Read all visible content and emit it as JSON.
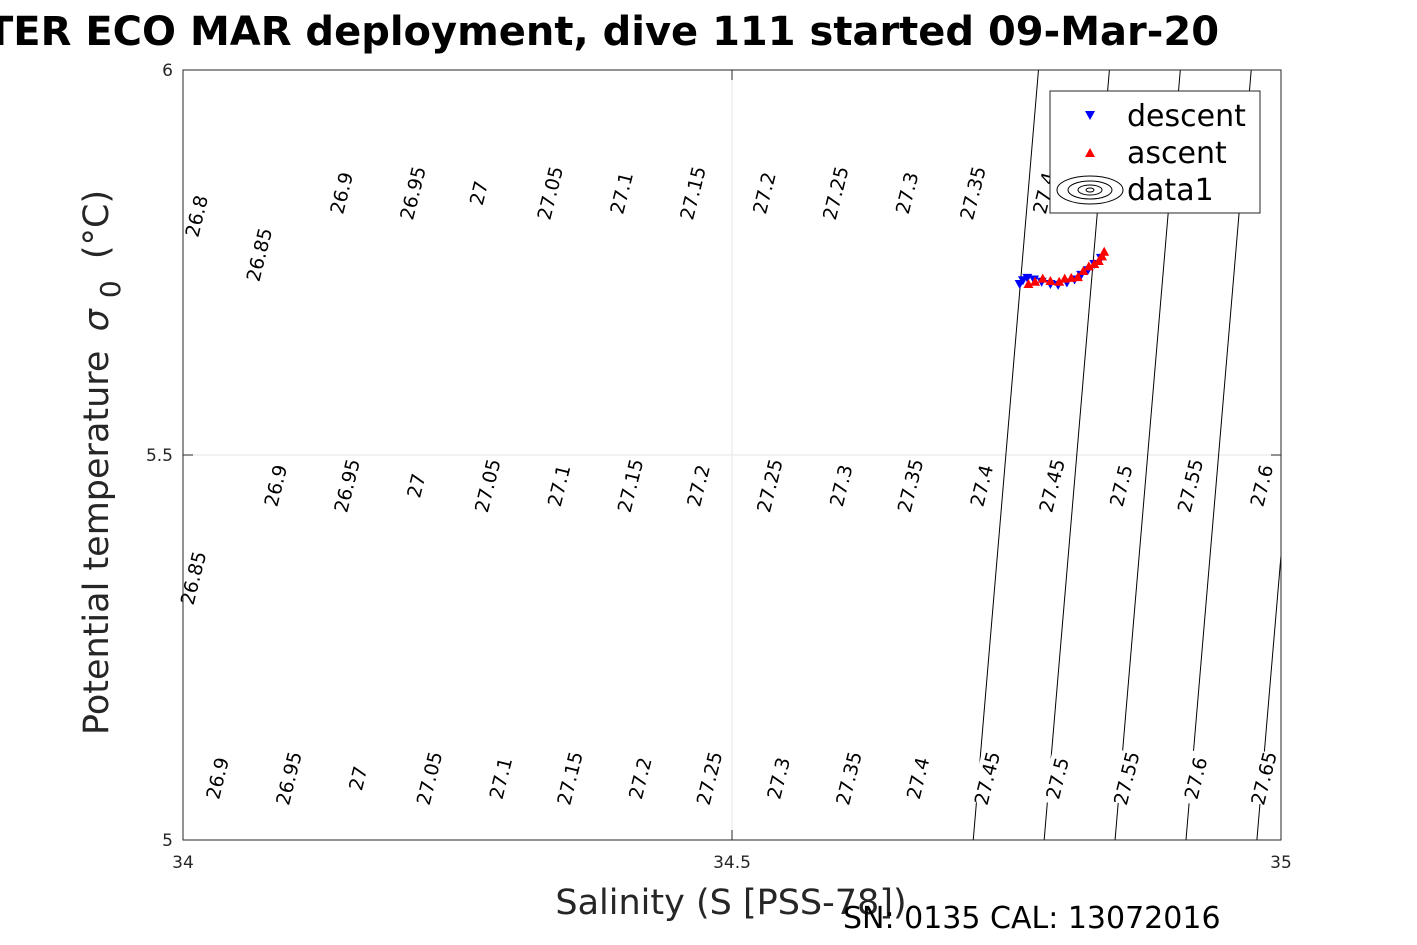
{
  "chart_data": {
    "type": "scatter",
    "title": "TER ECO MAR deployment, dive 111 started 09-Mar-20",
    "xlabel": "Salinity (S [PSS-78])",
    "ylabel": "Potential temperature",
    "ylabel_symbol": "σ",
    "ylabel_subscript": "0",
    "ylabel_unit": "(°C)",
    "xlim": [
      34,
      35
    ],
    "ylim": [
      5,
      6
    ],
    "xticks": [
      "34",
      "34.5",
      "35"
    ],
    "yticks": [
      "5",
      "5.5",
      "6"
    ],
    "grid": true,
    "legend_position": "top-right",
    "legend": [
      {
        "name": "descent",
        "marker": "triangle-down",
        "color": "#0000ff"
      },
      {
        "name": "ascent",
        "marker": "triangle-up",
        "color": "#ff0000"
      },
      {
        "name": "data1",
        "marker": "contour",
        "color": "#000000"
      }
    ],
    "contour_levels": [
      26.8,
      26.85,
      26.9,
      26.95,
      27,
      27.05,
      27.1,
      27.15,
      27.2,
      27.25,
      27.3,
      27.35,
      27.4,
      27.45,
      27.5,
      27.55,
      27.6,
      27.65
    ],
    "contour_labels": [
      {
        "text": "26.8",
        "s": 34.013,
        "t": 5.81
      },
      {
        "text": "26.85",
        "s": 34.07,
        "t": 5.76
      },
      {
        "text": "26.9",
        "s": 34.145,
        "t": 5.84
      },
      {
        "text": "26.95",
        "s": 34.21,
        "t": 5.84
      },
      {
        "text": "27",
        "s": 34.27,
        "t": 5.84
      },
      {
        "text": "27.05",
        "s": 34.335,
        "t": 5.84
      },
      {
        "text": "27.1",
        "s": 34.4,
        "t": 5.84
      },
      {
        "text": "27.15",
        "s": 34.465,
        "t": 5.84
      },
      {
        "text": "27.2",
        "s": 34.53,
        "t": 5.84
      },
      {
        "text": "27.25",
        "s": 34.595,
        "t": 5.84
      },
      {
        "text": "27.3",
        "s": 34.66,
        "t": 5.84
      },
      {
        "text": "27.35",
        "s": 34.72,
        "t": 5.84
      },
      {
        "text": "27.4",
        "s": 34.785,
        "t": 5.84
      },
      {
        "text": "26.85",
        "s": 34.01,
        "t": 5.34
      },
      {
        "text": "26.9",
        "s": 34.085,
        "t": 5.46
      },
      {
        "text": "26.95",
        "s": 34.15,
        "t": 5.46
      },
      {
        "text": "27",
        "s": 34.213,
        "t": 5.46
      },
      {
        "text": "27.05",
        "s": 34.278,
        "t": 5.46
      },
      {
        "text": "27.1",
        "s": 34.343,
        "t": 5.46
      },
      {
        "text": "27.15",
        "s": 34.408,
        "t": 5.46
      },
      {
        "text": "27.2",
        "s": 34.47,
        "t": 5.46
      },
      {
        "text": "27.25",
        "s": 34.535,
        "t": 5.46
      },
      {
        "text": "27.3",
        "s": 34.6,
        "t": 5.46
      },
      {
        "text": "27.35",
        "s": 34.663,
        "t": 5.46
      },
      {
        "text": "27.4",
        "s": 34.728,
        "t": 5.46
      },
      {
        "text": "27.45",
        "s": 34.792,
        "t": 5.46
      },
      {
        "text": "27.5",
        "s": 34.855,
        "t": 5.46
      },
      {
        "text": "27.55",
        "s": 34.918,
        "t": 5.46
      },
      {
        "text": "27.6",
        "s": 34.983,
        "t": 5.46
      },
      {
        "text": "26.9",
        "s": 34.032,
        "t": 5.08
      },
      {
        "text": "26.95",
        "s": 34.097,
        "t": 5.08
      },
      {
        "text": "27",
        "s": 34.16,
        "t": 5.08
      },
      {
        "text": "27.05",
        "s": 34.225,
        "t": 5.08
      },
      {
        "text": "27.1",
        "s": 34.29,
        "t": 5.08
      },
      {
        "text": "27.15",
        "s": 34.353,
        "t": 5.08
      },
      {
        "text": "27.2",
        "s": 34.417,
        "t": 5.08
      },
      {
        "text": "27.25",
        "s": 34.48,
        "t": 5.08
      },
      {
        "text": "27.3",
        "s": 34.543,
        "t": 5.08
      },
      {
        "text": "27.35",
        "s": 34.607,
        "t": 5.08
      },
      {
        "text": "27.4",
        "s": 34.67,
        "t": 5.08
      },
      {
        "text": "27.45",
        "s": 34.733,
        "t": 5.08
      },
      {
        "text": "27.5",
        "s": 34.797,
        "t": 5.08
      },
      {
        "text": "27.55",
        "s": 34.86,
        "t": 5.08
      },
      {
        "text": "27.6",
        "s": 34.923,
        "t": 5.08
      },
      {
        "text": "27.65",
        "s": 34.985,
        "t": 5.08
      }
    ],
    "series": [
      {
        "name": "descent",
        "color": "#0000ff",
        "marker": "triangle-down",
        "points": [
          {
            "x": 34.762,
            "y": 5.722
          },
          {
            "x": 34.765,
            "y": 5.727
          },
          {
            "x": 34.769,
            "y": 5.73
          },
          {
            "x": 34.775,
            "y": 5.728
          },
          {
            "x": 34.782,
            "y": 5.725
          },
          {
            "x": 34.79,
            "y": 5.722
          },
          {
            "x": 34.797,
            "y": 5.721
          },
          {
            "x": 34.805,
            "y": 5.724
          },
          {
            "x": 34.812,
            "y": 5.728
          },
          {
            "x": 34.818,
            "y": 5.734
          },
          {
            "x": 34.824,
            "y": 5.74
          },
          {
            "x": 34.83,
            "y": 5.748
          },
          {
            "x": 34.836,
            "y": 5.756
          }
        ]
      },
      {
        "name": "ascent",
        "color": "#ff0000",
        "marker": "triangle-up",
        "points": [
          {
            "x": 34.77,
            "y": 5.722
          },
          {
            "x": 34.776,
            "y": 5.725
          },
          {
            "x": 34.783,
            "y": 5.729
          },
          {
            "x": 34.79,
            "y": 5.726
          },
          {
            "x": 34.798,
            "y": 5.725
          },
          {
            "x": 34.803,
            "y": 5.729
          },
          {
            "x": 34.809,
            "y": 5.73
          },
          {
            "x": 34.815,
            "y": 5.731
          },
          {
            "x": 34.82,
            "y": 5.739
          },
          {
            "x": 34.825,
            "y": 5.745
          },
          {
            "x": 34.83,
            "y": 5.748
          },
          {
            "x": 34.834,
            "y": 5.752
          },
          {
            "x": 34.837,
            "y": 5.758
          },
          {
            "x": 34.839,
            "y": 5.764
          }
        ]
      }
    ]
  },
  "footer": {
    "serial": "SN: 0135  CAL: 13072016"
  }
}
